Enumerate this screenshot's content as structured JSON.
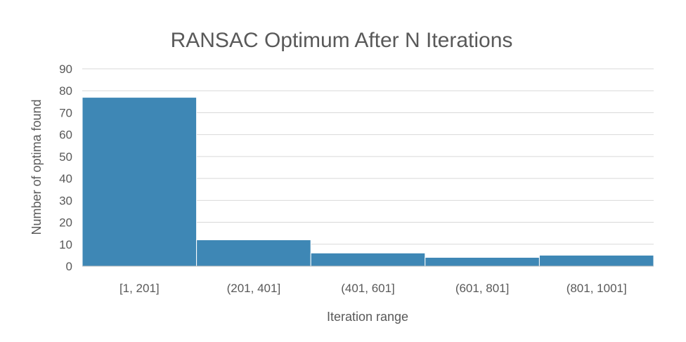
{
  "chart_data": {
    "type": "bar",
    "title": "RANSAC Optimum After N Iterations",
    "xlabel": "Iteration range",
    "ylabel": "Number of optima found",
    "categories": [
      "[1, 201]",
      "(201, 401]",
      "(401, 601]",
      "(601, 801]",
      "(801, 1001]"
    ],
    "values": [
      77,
      12,
      6,
      4,
      5
    ],
    "ylim": [
      0,
      90
    ],
    "yticks": [
      0,
      10,
      20,
      30,
      40,
      50,
      60,
      70,
      80,
      90
    ],
    "grid": true,
    "legend": "none",
    "colors": {
      "bar": "#3e87b5",
      "bar_border": "#ffffff"
    }
  }
}
